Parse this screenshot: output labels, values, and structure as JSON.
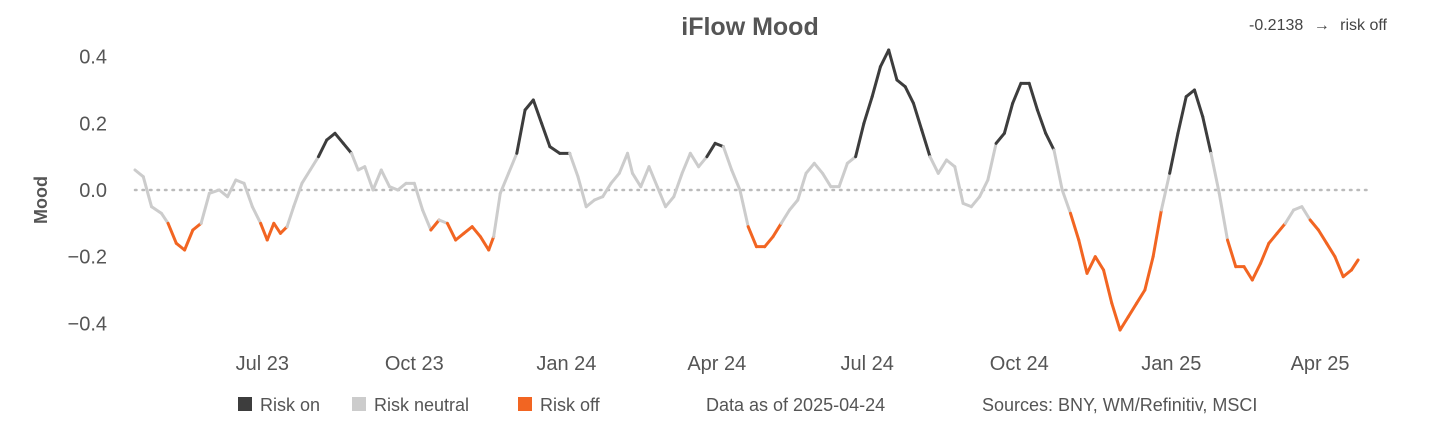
{
  "title": "iFlow Mood",
  "latest": {
    "value": "-0.2138",
    "arrow": "→",
    "state": "risk off"
  },
  "footer": {
    "as_of": "Data as of 2025-04-24",
    "sources": "Sources:  BNY, WM/Refinitiv, MSCI"
  },
  "chart_data": {
    "type": "line",
    "title": "iFlow Mood",
    "ylabel": "Mood",
    "xlabel": "",
    "ylim": [
      -0.45,
      0.45
    ],
    "xlim": [
      "2023-04-15",
      "2025-04-30"
    ],
    "reference_line": {
      "y": 0,
      "style": "dotted"
    },
    "yticks": [
      {
        "value": 0.4,
        "label": "0.4"
      },
      {
        "value": 0.2,
        "label": "0.2"
      },
      {
        "value": 0.0,
        "label": "0.0"
      },
      {
        "value": -0.2,
        "label": "−0.2"
      },
      {
        "value": -0.4,
        "label": "−0.4"
      }
    ],
    "xticks": [
      {
        "date": "2023-07-01",
        "label": "Jul 23"
      },
      {
        "date": "2023-10-01",
        "label": "Oct 23"
      },
      {
        "date": "2024-01-01",
        "label": "Jan 24"
      },
      {
        "date": "2024-04-01",
        "label": "Apr 24"
      },
      {
        "date": "2024-07-01",
        "label": "Jul 24"
      },
      {
        "date": "2024-10-01",
        "label": "Oct 24"
      },
      {
        "date": "2025-01-01",
        "label": "Jan 25"
      },
      {
        "date": "2025-04-01",
        "label": "Apr 25"
      }
    ],
    "regimes": {
      "risk_on_above": 0.1,
      "risk_off_below": -0.1,
      "colors": {
        "risk_on": "#3d3d3d",
        "neutral": "#cccccc",
        "risk_off": "#f26522"
      }
    },
    "legend": {
      "placement": "bottom",
      "items": [
        {
          "key": "risk_on",
          "label": "Risk on",
          "color": "#3d3d3d"
        },
        {
          "key": "neutral",
          "label": "Risk neutral",
          "color": "#cccccc"
        },
        {
          "key": "risk_off",
          "label": "Risk off",
          "color": "#f26522"
        }
      ]
    },
    "series": [
      {
        "points": [
          [
            "2023-04-15",
            0.06
          ],
          [
            "2023-04-20",
            0.04
          ],
          [
            "2023-04-25",
            -0.05
          ],
          [
            "2023-05-01",
            -0.07
          ],
          [
            "2023-05-05",
            -0.1
          ],
          [
            "2023-05-10",
            -0.16
          ],
          [
            "2023-05-15",
            -0.18
          ],
          [
            "2023-05-20",
            -0.12
          ],
          [
            "2023-05-25",
            -0.1
          ],
          [
            "2023-05-30",
            -0.01
          ],
          [
            "2023-06-05",
            0.0
          ],
          [
            "2023-06-10",
            -0.02
          ],
          [
            "2023-06-15",
            0.03
          ],
          [
            "2023-06-20",
            0.02
          ],
          [
            "2023-06-25",
            -0.05
          ],
          [
            "2023-06-30",
            -0.1
          ],
          [
            "2023-07-04",
            -0.15
          ],
          [
            "2023-07-08",
            -0.1
          ],
          [
            "2023-07-12",
            -0.13
          ],
          [
            "2023-07-16",
            -0.11
          ],
          [
            "2023-07-20",
            -0.05
          ],
          [
            "2023-07-25",
            0.02
          ],
          [
            "2023-07-30",
            0.06
          ],
          [
            "2023-08-04",
            0.1
          ],
          [
            "2023-08-09",
            0.15
          ],
          [
            "2023-08-14",
            0.17
          ],
          [
            "2023-08-19",
            0.14
          ],
          [
            "2023-08-24",
            0.11
          ],
          [
            "2023-08-28",
            0.06
          ],
          [
            "2023-09-01",
            0.07
          ],
          [
            "2023-09-06",
            0.0
          ],
          [
            "2023-09-11",
            0.06
          ],
          [
            "2023-09-16",
            0.01
          ],
          [
            "2023-09-21",
            0.0
          ],
          [
            "2023-09-26",
            0.02
          ],
          [
            "2023-10-01",
            0.02
          ],
          [
            "2023-10-06",
            -0.06
          ],
          [
            "2023-10-11",
            -0.12
          ],
          [
            "2023-10-16",
            -0.09
          ],
          [
            "2023-10-21",
            -0.1
          ],
          [
            "2023-10-26",
            -0.15
          ],
          [
            "2023-10-31",
            -0.13
          ],
          [
            "2023-11-05",
            -0.11
          ],
          [
            "2023-11-10",
            -0.14
          ],
          [
            "2023-11-15",
            -0.18
          ],
          [
            "2023-11-18",
            -0.14
          ],
          [
            "2023-11-22",
            -0.01
          ],
          [
            "2023-11-27",
            0.05
          ],
          [
            "2023-12-02",
            0.11
          ],
          [
            "2023-12-07",
            0.24
          ],
          [
            "2023-12-12",
            0.27
          ],
          [
            "2023-12-17",
            0.2
          ],
          [
            "2023-12-22",
            0.13
          ],
          [
            "2023-12-28",
            0.11
          ],
          [
            "2024-01-03",
            0.11
          ],
          [
            "2024-01-08",
            0.04
          ],
          [
            "2024-01-13",
            -0.05
          ],
          [
            "2024-01-18",
            -0.03
          ],
          [
            "2024-01-23",
            -0.02
          ],
          [
            "2024-01-28",
            0.02
          ],
          [
            "2024-02-02",
            0.05
          ],
          [
            "2024-02-07",
            0.11
          ],
          [
            "2024-02-10",
            0.05
          ],
          [
            "2024-02-15",
            0.01
          ],
          [
            "2024-02-20",
            0.07
          ],
          [
            "2024-02-25",
            0.01
          ],
          [
            "2024-03-01",
            -0.05
          ],
          [
            "2024-03-06",
            -0.02
          ],
          [
            "2024-03-11",
            0.05
          ],
          [
            "2024-03-16",
            0.11
          ],
          [
            "2024-03-21",
            0.07
          ],
          [
            "2024-03-26",
            0.1
          ],
          [
            "2024-03-31",
            0.14
          ],
          [
            "2024-04-05",
            0.13
          ],
          [
            "2024-04-10",
            0.06
          ],
          [
            "2024-04-15",
            0.0
          ],
          [
            "2024-04-20",
            -0.11
          ],
          [
            "2024-04-25",
            -0.17
          ],
          [
            "2024-04-30",
            -0.17
          ],
          [
            "2024-05-05",
            -0.14
          ],
          [
            "2024-05-10",
            -0.1
          ],
          [
            "2024-05-15",
            -0.06
          ],
          [
            "2024-05-20",
            -0.03
          ],
          [
            "2024-05-25",
            0.05
          ],
          [
            "2024-05-30",
            0.08
          ],
          [
            "2024-06-04",
            0.05
          ],
          [
            "2024-06-09",
            0.01
          ],
          [
            "2024-06-14",
            0.01
          ],
          [
            "2024-06-19",
            0.08
          ],
          [
            "2024-06-24",
            0.1
          ],
          [
            "2024-06-29",
            0.2
          ],
          [
            "2024-07-04",
            0.28
          ],
          [
            "2024-07-09",
            0.37
          ],
          [
            "2024-07-14",
            0.42
          ],
          [
            "2024-07-19",
            0.33
          ],
          [
            "2024-07-24",
            0.31
          ],
          [
            "2024-07-29",
            0.26
          ],
          [
            "2024-08-03",
            0.18
          ],
          [
            "2024-08-08",
            0.1
          ],
          [
            "2024-08-13",
            0.05
          ],
          [
            "2024-08-18",
            0.09
          ],
          [
            "2024-08-23",
            0.07
          ],
          [
            "2024-08-28",
            -0.04
          ],
          [
            "2024-09-02",
            -0.05
          ],
          [
            "2024-09-07",
            -0.02
          ],
          [
            "2024-09-12",
            0.03
          ],
          [
            "2024-09-17",
            0.14
          ],
          [
            "2024-09-22",
            0.17
          ],
          [
            "2024-09-27",
            0.26
          ],
          [
            "2024-10-02",
            0.32
          ],
          [
            "2024-10-07",
            0.32
          ],
          [
            "2024-10-12",
            0.24
          ],
          [
            "2024-10-17",
            0.17
          ],
          [
            "2024-10-22",
            0.12
          ],
          [
            "2024-10-27",
            0.0
          ],
          [
            "2024-11-01",
            -0.07
          ],
          [
            "2024-11-06",
            -0.15
          ],
          [
            "2024-11-11",
            -0.25
          ],
          [
            "2024-11-16",
            -0.2
          ],
          [
            "2024-11-21",
            -0.24
          ],
          [
            "2024-11-26",
            -0.34
          ],
          [
            "2024-12-01",
            -0.42
          ],
          [
            "2024-12-06",
            -0.38
          ],
          [
            "2024-12-11",
            -0.34
          ],
          [
            "2024-12-16",
            -0.3
          ],
          [
            "2024-12-21",
            -0.2
          ],
          [
            "2024-12-26",
            -0.06
          ],
          [
            "2024-12-31",
            0.05
          ],
          [
            "2025-01-05",
            0.17
          ],
          [
            "2025-01-10",
            0.28
          ],
          [
            "2025-01-15",
            0.3
          ],
          [
            "2025-01-20",
            0.22
          ],
          [
            "2025-01-25",
            0.11
          ],
          [
            "2025-01-30",
            -0.01
          ],
          [
            "2025-02-04",
            -0.15
          ],
          [
            "2025-02-09",
            -0.23
          ],
          [
            "2025-02-14",
            -0.23
          ],
          [
            "2025-02-19",
            -0.27
          ],
          [
            "2025-02-24",
            -0.22
          ],
          [
            "2025-03-01",
            -0.16
          ],
          [
            "2025-03-06",
            -0.13
          ],
          [
            "2025-03-11",
            -0.1
          ],
          [
            "2025-03-16",
            -0.06
          ],
          [
            "2025-03-21",
            -0.05
          ],
          [
            "2025-03-26",
            -0.09
          ],
          [
            "2025-03-31",
            -0.12
          ],
          [
            "2025-04-05",
            -0.16
          ],
          [
            "2025-04-10",
            -0.2
          ],
          [
            "2025-04-15",
            -0.26
          ],
          [
            "2025-04-20",
            -0.24
          ],
          [
            "2025-04-24",
            -0.21
          ]
        ]
      }
    ]
  }
}
